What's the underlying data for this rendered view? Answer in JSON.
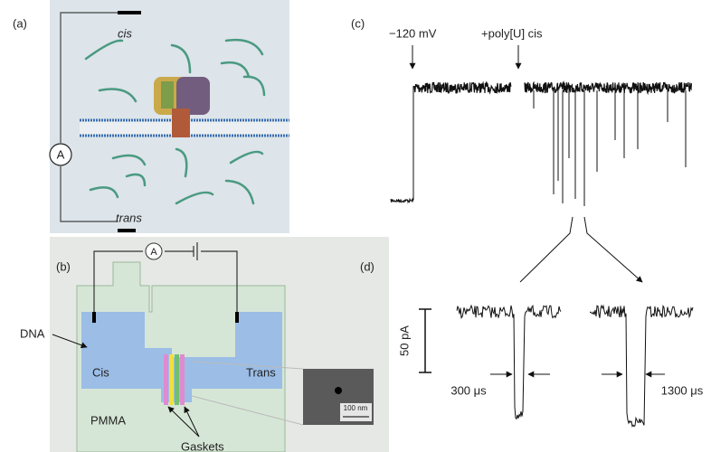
{
  "panel_a": {
    "label": "(a)",
    "cis": "cis",
    "ammeter": "A",
    "trans": "trans"
  },
  "panel_b": {
    "label": "(b)",
    "ammeter": "A",
    "dna": "DNA",
    "cis": "Cis",
    "trans": "Trans",
    "pmma": "PMMA",
    "gaskets": "Gaskets"
  },
  "panel_c": {
    "label": "(c)",
    "voltage": "−120 mV",
    "addition": "+poly[U] cis",
    "scale": "50 pA",
    "short_event": "300 μs",
    "long_event": "1300 μs"
  },
  "panel_d": {
    "label": "(d)",
    "scale": "100 nm"
  }
}
